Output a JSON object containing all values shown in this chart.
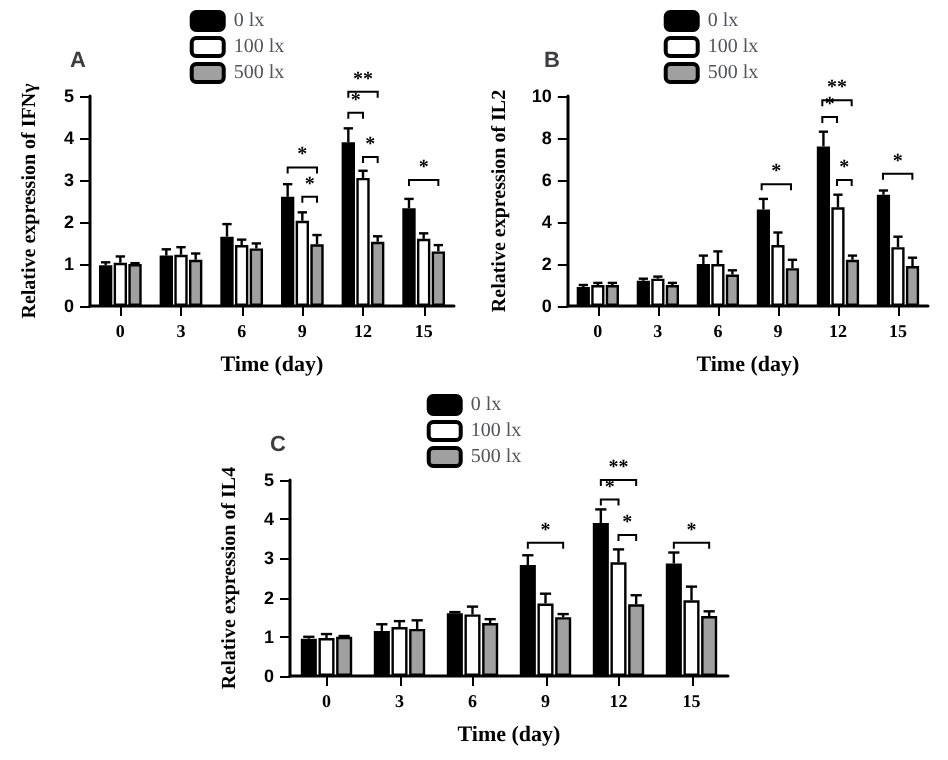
{
  "chart_data": [
    {
      "type": "bar",
      "title": "A",
      "xlabel": "Time (day)",
      "ylabel": "Relative expression of IFNγ",
      "categories": [
        "0",
        "3",
        "6",
        "9",
        "12",
        "15"
      ],
      "ylim": [
        0,
        5
      ],
      "yticks": [
        0,
        1,
        2,
        3,
        4,
        5
      ],
      "legend": "top",
      "grid": false,
      "series": [
        {
          "name": "0 lx",
          "color": "#000000",
          "values": [
            0.97,
            1.2,
            1.65,
            2.6,
            3.9,
            2.33
          ],
          "errors": [
            0.07,
            0.15,
            0.3,
            0.3,
            0.33,
            0.22
          ]
        },
        {
          "name": "100 lx",
          "color": "#ffffff",
          "values": [
            1.03,
            1.22,
            1.45,
            2.03,
            3.05,
            1.6
          ],
          "errors": [
            0.15,
            0.18,
            0.13,
            0.2,
            0.17,
            0.13
          ]
        },
        {
          "name": "500 lx",
          "color": "#a0a0a0",
          "values": [
            1.0,
            1.1,
            1.37,
            1.47,
            1.53,
            1.3
          ],
          "errors": [
            0.02,
            0.15,
            0.12,
            0.22,
            0.13,
            0.15
          ]
        }
      ],
      "annotations": [
        "*",
        "*",
        "*",
        "**",
        "*",
        "*"
      ]
    },
    {
      "type": "bar",
      "title": "B",
      "xlabel": "Time (day)",
      "ylabel": "Relative expression of IL2",
      "categories": [
        "0",
        "3",
        "6",
        "9",
        "12",
        "15"
      ],
      "ylim": [
        0,
        10
      ],
      "yticks": [
        0,
        2,
        4,
        6,
        8,
        10
      ],
      "legend": "top",
      "grid": false,
      "series": [
        {
          "name": "0 lx",
          "color": "#000000",
          "values": [
            0.9,
            1.2,
            2.0,
            4.6,
            7.6,
            5.3
          ],
          "errors": [
            0.1,
            0.1,
            0.4,
            0.5,
            0.7,
            0.2
          ]
        },
        {
          "name": "100 lx",
          "color": "#ffffff",
          "values": [
            1.0,
            1.3,
            2.0,
            2.9,
            4.7,
            2.8
          ],
          "errors": [
            0.1,
            0.1,
            0.6,
            0.6,
            0.6,
            0.5
          ]
        },
        {
          "name": "500 lx",
          "color": "#a0a0a0",
          "values": [
            1.0,
            1.0,
            1.5,
            1.8,
            2.2,
            1.9
          ],
          "errors": [
            0.1,
            0.1,
            0.2,
            0.4,
            0.2,
            0.4
          ]
        }
      ],
      "annotations": [
        "*",
        "*",
        "**",
        "*",
        "*"
      ]
    },
    {
      "type": "bar",
      "title": "C",
      "xlabel": "Time (day)",
      "ylabel": "Relative expression of IL4",
      "categories": [
        "0",
        "3",
        "6",
        "9",
        "12",
        "15"
      ],
      "ylim": [
        0,
        5
      ],
      "yticks": [
        0,
        1,
        2,
        3,
        4,
        5
      ],
      "legend": "top",
      "grid": false,
      "series": [
        {
          "name": "0 lx",
          "color": "#000000",
          "values": [
            0.95,
            1.15,
            1.6,
            2.83,
            3.9,
            2.87
          ],
          "errors": [
            0.05,
            0.17,
            0.03,
            0.25,
            0.35,
            0.28
          ]
        },
        {
          "name": "100 lx",
          "color": "#ffffff",
          "values": [
            0.97,
            1.25,
            1.57,
            1.85,
            2.9,
            1.93
          ],
          "errors": [
            0.1,
            0.15,
            0.2,
            0.25,
            0.33,
            0.35
          ]
        },
        {
          "name": "500 lx",
          "color": "#a0a0a0",
          "values": [
            1.0,
            1.2,
            1.35,
            1.5,
            1.83,
            1.53
          ],
          "errors": [
            0.02,
            0.22,
            0.1,
            0.08,
            0.23,
            0.12
          ]
        }
      ],
      "annotations": [
        "*",
        "*",
        "**",
        "*",
        "*"
      ]
    }
  ]
}
